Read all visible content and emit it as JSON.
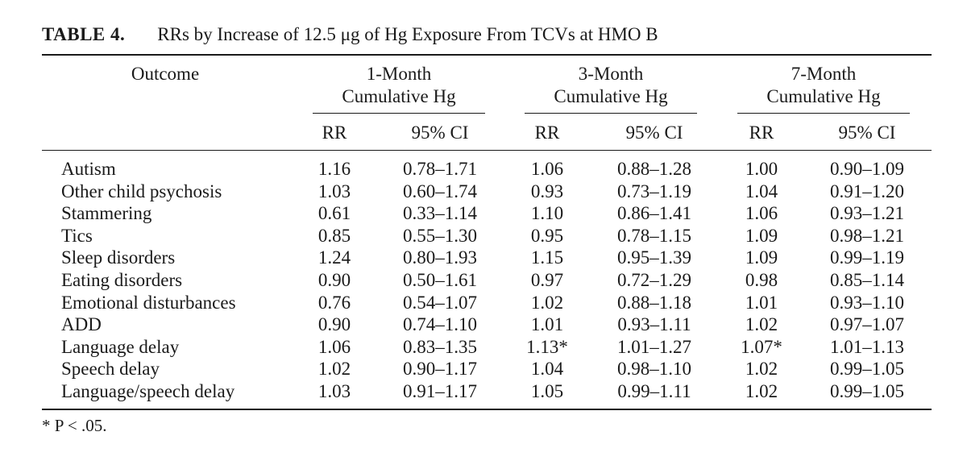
{
  "table": {
    "label": "TABLE 4.",
    "title": "RRs by Increase of 12.5 μg of Hg Exposure From TCVs at HMO B",
    "headers": {
      "outcome": "Outcome",
      "groups": [
        {
          "line1": "1-Month",
          "line2": "Cumulative Hg"
        },
        {
          "line1": "3-Month",
          "line2": "Cumulative Hg"
        },
        {
          "line1": "7-Month",
          "line2": "Cumulative Hg"
        }
      ],
      "rr": "RR",
      "ci": "95% CI"
    },
    "rows": [
      {
        "outcome": "Autism",
        "m1_rr": "1.16",
        "m1_ci": "0.78–1.71",
        "m3_rr": "1.06",
        "m3_ci": "0.88–1.28",
        "m7_rr": "1.00",
        "m7_ci": "0.90–1.09"
      },
      {
        "outcome": "Other child psychosis",
        "m1_rr": "1.03",
        "m1_ci": "0.60–1.74",
        "m3_rr": "0.93",
        "m3_ci": "0.73–1.19",
        "m7_rr": "1.04",
        "m7_ci": "0.91–1.20"
      },
      {
        "outcome": "Stammering",
        "m1_rr": "0.61",
        "m1_ci": "0.33–1.14",
        "m3_rr": "1.10",
        "m3_ci": "0.86–1.41",
        "m7_rr": "1.06",
        "m7_ci": "0.93–1.21"
      },
      {
        "outcome": "Tics",
        "m1_rr": "0.85",
        "m1_ci": "0.55–1.30",
        "m3_rr": "0.95",
        "m3_ci": "0.78–1.15",
        "m7_rr": "1.09",
        "m7_ci": "0.98–1.21"
      },
      {
        "outcome": "Sleep disorders",
        "m1_rr": "1.24",
        "m1_ci": "0.80–1.93",
        "m3_rr": "1.15",
        "m3_ci": "0.95–1.39",
        "m7_rr": "1.09",
        "m7_ci": "0.99–1.19"
      },
      {
        "outcome": "Eating disorders",
        "m1_rr": "0.90",
        "m1_ci": "0.50–1.61",
        "m3_rr": "0.97",
        "m3_ci": "0.72–1.29",
        "m7_rr": "0.98",
        "m7_ci": "0.85–1.14"
      },
      {
        "outcome": "Emotional disturbances",
        "m1_rr": "0.76",
        "m1_ci": "0.54–1.07",
        "m3_rr": "1.02",
        "m3_ci": "0.88–1.18",
        "m7_rr": "1.01",
        "m7_ci": "0.93–1.10"
      },
      {
        "outcome": "ADD",
        "m1_rr": "0.90",
        "m1_ci": "0.74–1.10",
        "m3_rr": "1.01",
        "m3_ci": "0.93–1.11",
        "m7_rr": "1.02",
        "m7_ci": "0.97–1.07"
      },
      {
        "outcome": "Language delay",
        "m1_rr": "1.06",
        "m1_ci": "0.83–1.35",
        "m3_rr": "1.13*",
        "m3_ci": "1.01–1.27",
        "m7_rr": "1.07*",
        "m7_ci": "1.01–1.13"
      },
      {
        "outcome": "Speech delay",
        "m1_rr": "1.02",
        "m1_ci": "0.90–1.17",
        "m3_rr": "1.04",
        "m3_ci": "0.98–1.10",
        "m7_rr": "1.02",
        "m7_ci": "0.99–1.05"
      },
      {
        "outcome": "Language/speech delay",
        "m1_rr": "1.03",
        "m1_ci": "0.91–1.17",
        "m3_rr": "1.05",
        "m3_ci": "0.99–1.11",
        "m7_rr": "1.02",
        "m7_ci": "0.99–1.05"
      }
    ],
    "footnote": "* P < .05."
  }
}
